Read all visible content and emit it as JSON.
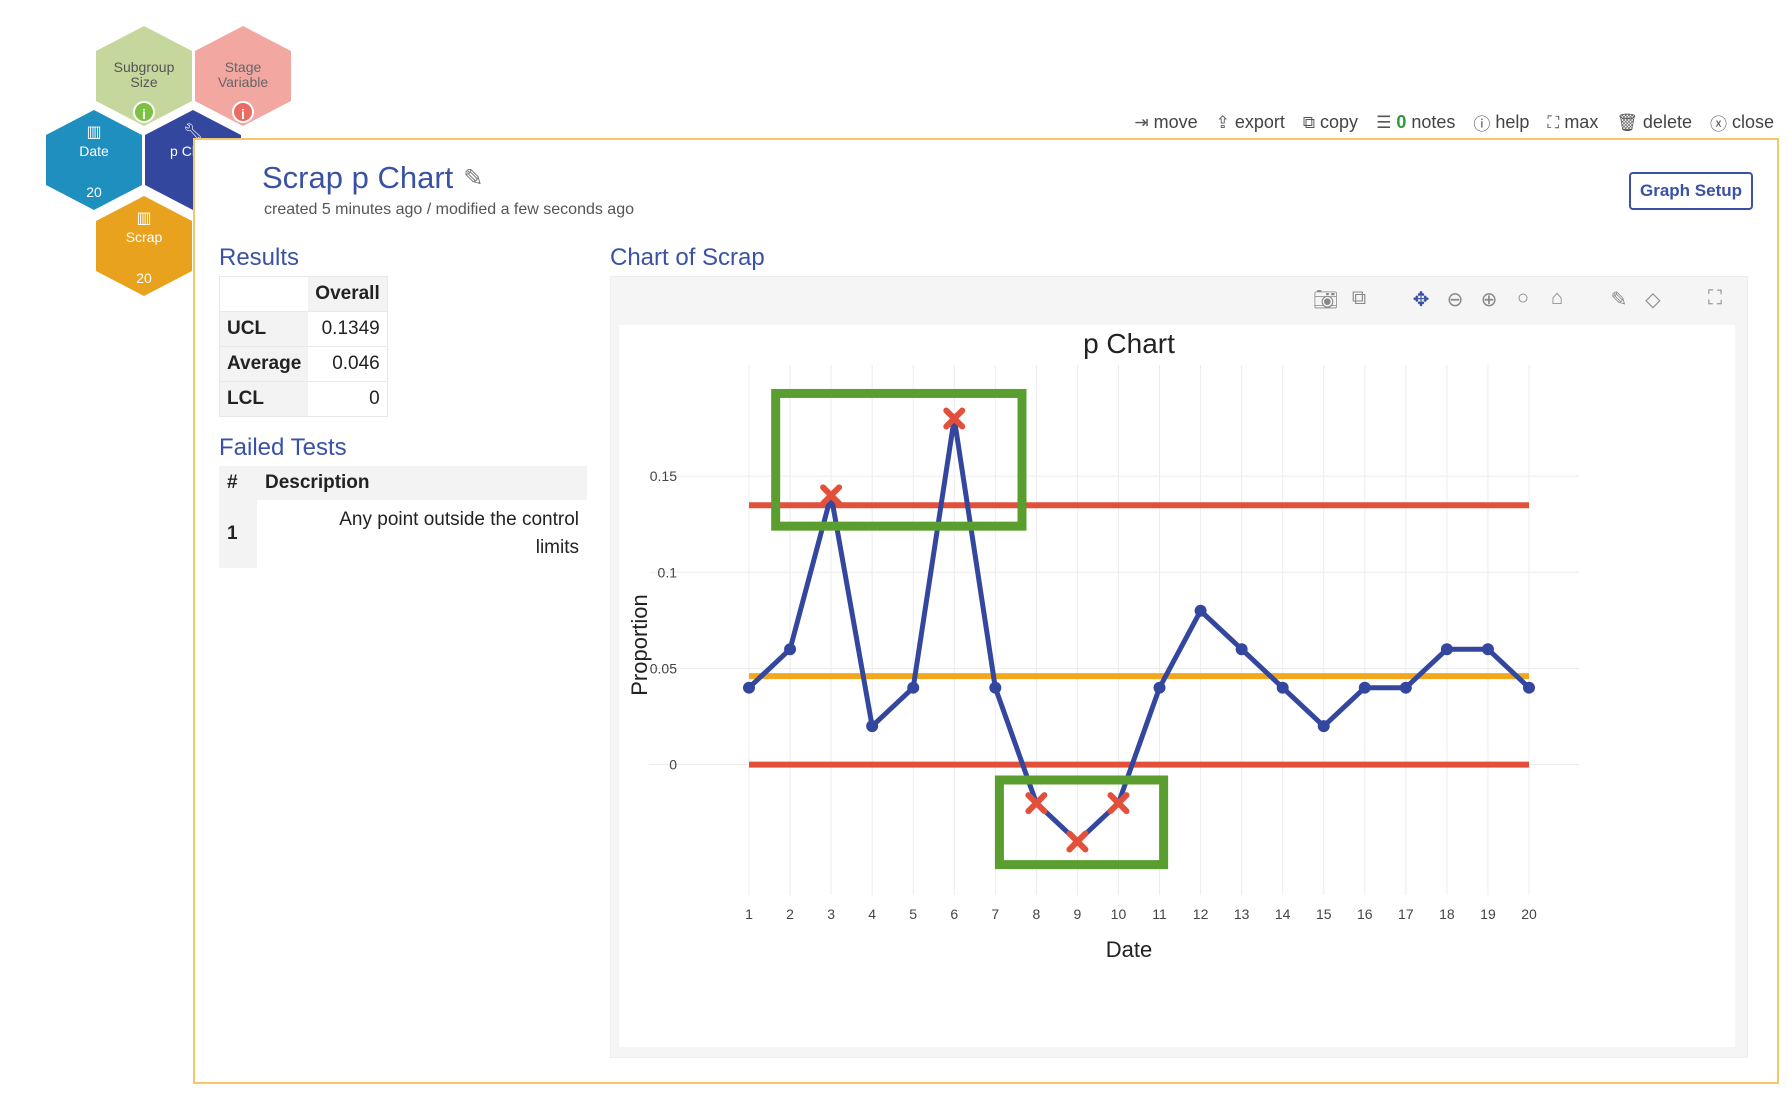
{
  "nodes": {
    "subgroup": {
      "label_line1": "Subgroup",
      "label_line2": "Size",
      "color": "#c5d79c",
      "icon": "info-icon",
      "icon_color": "#7cc142"
    },
    "stage": {
      "label_line1": "Stage",
      "label_line2": "Variable",
      "color": "#f2a7a1",
      "icon": "info-icon",
      "icon_color": "#e96b61"
    },
    "date": {
      "label": "Date",
      "count": "20",
      "color": "#1f8fbf"
    },
    "pchart": {
      "label": "p Chart",
      "color": "#34479e"
    },
    "scrap": {
      "label": "Scrap",
      "count": "20",
      "color": "#e8a21d"
    }
  },
  "actions": {
    "move": "move",
    "export": "export",
    "copy": "copy",
    "notes_count": "0",
    "notes": "notes",
    "help": "help",
    "max": "max",
    "delete": "delete",
    "close": "close"
  },
  "title": "Scrap p Chart",
  "meta": "created 5 minutes ago / modified a few seconds ago",
  "graph_setup": "Graph Setup",
  "results": {
    "title": "Results",
    "header": "Overall",
    "rows": [
      {
        "label": "UCL",
        "value": "0.1349"
      },
      {
        "label": "Average",
        "value": "0.046"
      },
      {
        "label": "LCL",
        "value": "0"
      }
    ]
  },
  "failed_tests": {
    "title": "Failed Tests",
    "col_num": "#",
    "col_desc": "Description",
    "rows": [
      {
        "num": "1",
        "desc_line1": "Any point outside the control",
        "desc_line2": "limits"
      }
    ]
  },
  "chart_section_title": "Chart of Scrap",
  "chart_data": {
    "type": "line",
    "title": "p Chart",
    "xlabel": "Date",
    "ylabel": "Proportion",
    "x": [
      1,
      2,
      3,
      4,
      5,
      6,
      7,
      8,
      9,
      10,
      11,
      12,
      13,
      14,
      15,
      16,
      17,
      18,
      19,
      20
    ],
    "values": [
      0.04,
      0.06,
      0.14,
      0.02,
      0.04,
      0.18,
      0.04,
      -0.02,
      -0.04,
      -0.02,
      0.04,
      0.08,
      0.06,
      0.04,
      0.02,
      0.04,
      0.04,
      0.06,
      0.06,
      0.04
    ],
    "out_of_control": [
      3,
      6,
      8,
      9,
      10
    ],
    "ucl": 0.1349,
    "center": 0.046,
    "lcl": 0,
    "yticks": [
      0,
      0.05,
      0.1,
      0.15
    ],
    "ytick_labels": [
      "0",
      "0.05",
      "0.1",
      "0.15"
    ],
    "xtick_labels": [
      "1",
      "2",
      "3",
      "4",
      "5",
      "6",
      "7",
      "8",
      "9",
      "10",
      "11",
      "12",
      "13",
      "14",
      "15",
      "16",
      "17",
      "18",
      "19",
      "20"
    ],
    "ylim": [
      -0.06,
      0.2
    ],
    "grid": true,
    "colors": {
      "line": "#34479e",
      "limit": "#e2503c",
      "center": "#f2a81d",
      "marker_bad": "#e2503c",
      "highlight": "#5a9e2f"
    }
  }
}
